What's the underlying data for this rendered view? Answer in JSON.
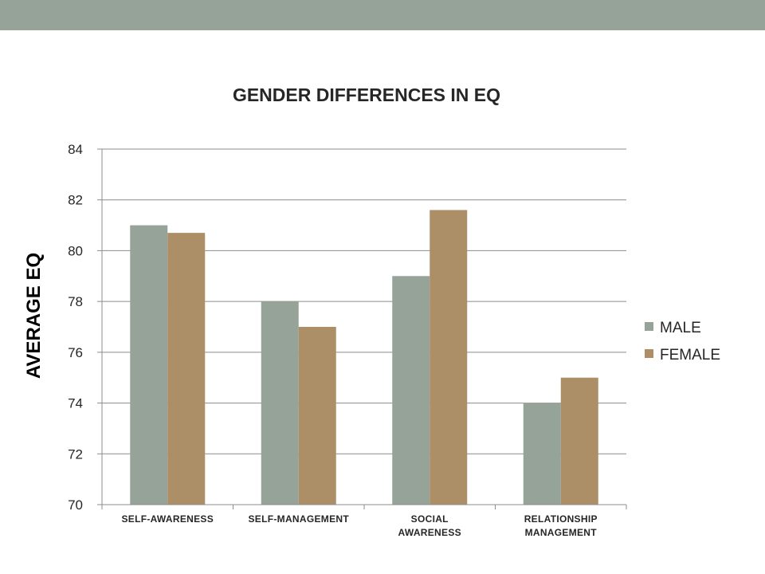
{
  "chart_data": {
    "type": "bar",
    "title": "GENDER DIFFERENCES IN EQ",
    "xlabel": "",
    "ylabel": "AVERAGE EQ",
    "ylim": [
      70,
      84
    ],
    "yticks": [
      70,
      72,
      74,
      76,
      78,
      80,
      82,
      84
    ],
    "categories": [
      [
        "SELF-AWARENESS"
      ],
      [
        "SELF-MANAGEMENT"
      ],
      [
        "SOCIAL",
        "AWARENESS"
      ],
      [
        "RELATIONSHIP",
        "MANAGEMENT"
      ]
    ],
    "series": [
      {
        "name": "MALE",
        "values": [
          81,
          78,
          79,
          74
        ],
        "color": "#95a399"
      },
      {
        "name": "FEMALE",
        "values": [
          80.7,
          77,
          81.6,
          75
        ],
        "color": "#ac8f66"
      }
    ],
    "grid": true,
    "legend": "right"
  }
}
